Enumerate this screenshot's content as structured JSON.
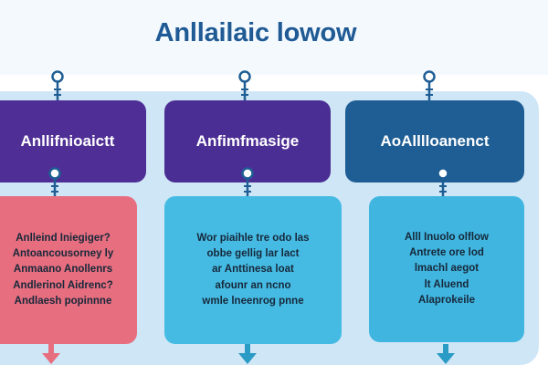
{
  "title": "Anllailaic lowow",
  "colors": {
    "header_bg": "#f4f9fe",
    "band_bg": "#cfe6f7",
    "title": "#1f5a94",
    "top_boxes": [
      "#4f2f95",
      "#4b2e94",
      "#1f5e94"
    ],
    "bottom_boxes": [
      "#e66e7f",
      "#45bbe3",
      "#3fb5df"
    ],
    "arrows": [
      "#e66e7f",
      "#2a9bc4",
      "#2a9bc4"
    ]
  },
  "columns": [
    {
      "top_label": "Anllifnioaictt",
      "bottom_lines": [
        "Anlleind Iniegiger?",
        "Antoancousorney ly",
        "Anmaano Anollenrs",
        "Andlerinol Aidrenc?",
        "Andlaesh popinnne"
      ]
    },
    {
      "top_label": "Anfimfmasige",
      "bottom_lines": [
        "Wor piaihle tre odo las",
        "obbe gellig lar lact",
        "ar Anttinesa loat",
        "afounr an ncno",
        "wmle lneenrog pnne"
      ]
    },
    {
      "top_label": "AoAlllloanenct",
      "bottom_lines": [
        "Alll Inuolo olflow",
        "Antrete ore lod",
        "lmachl aegot",
        "lt Aluend",
        "Alaprokeile"
      ]
    }
  ]
}
